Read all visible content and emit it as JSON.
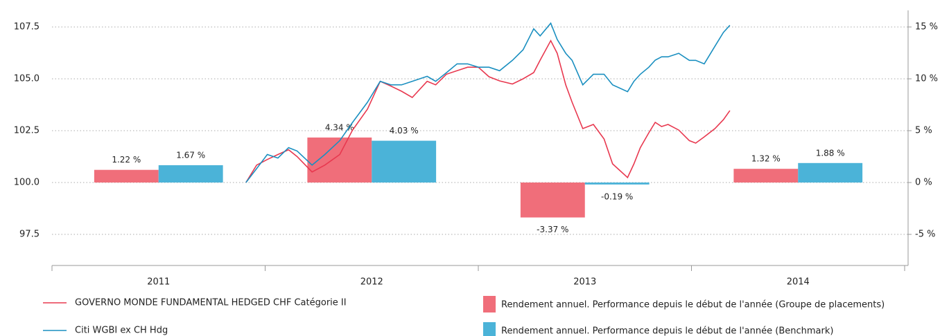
{
  "chart_data": {
    "type": "combo",
    "categories": [
      "2011",
      "2012",
      "2013",
      "2014"
    ],
    "xlim": [
      2011,
      2015
    ],
    "x": [
      2011.91,
      2011.96,
      2012.01,
      2012.06,
      2012.11,
      2012.15,
      2012.22,
      2012.28,
      2012.35,
      2012.41,
      2012.48,
      2012.54,
      2012.59,
      2012.64,
      2012.69,
      2012.76,
      2012.8,
      2012.85,
      2012.9,
      2012.95,
      2013.0,
      2013.05,
      2013.1,
      2013.16,
      2013.21,
      2013.26,
      2013.29,
      2013.34,
      2013.37,
      2013.41,
      2013.44,
      2013.49,
      2013.54,
      2013.59,
      2013.63,
      2013.7,
      2013.73,
      2013.76,
      2013.8,
      2013.83,
      2013.86,
      2013.89,
      2013.94,
      2013.99,
      2014.02,
      2014.06,
      2014.11,
      2014.15,
      2014.18
    ],
    "ylim": [
      96,
      108.3
    ],
    "yticks": [
      97.5,
      {
        "value": 100,
        "label": "100.0"
      },
      102.5,
      {
        "value": 105,
        "label": "105.0"
      },
      107.5
    ],
    "y2lim": [
      -8,
      16.6
    ],
    "y2ticks": [
      {
        "value": -5,
        "label": "-5 %"
      },
      {
        "value": 0,
        "label": "0 %"
      },
      {
        "value": 5,
        "label": "5 %"
      },
      {
        "value": 10,
        "label": "10 %"
      },
      {
        "value": 15,
        "label": "15 %"
      }
    ],
    "grid": true,
    "series": [
      {
        "name": "GOVERNO MONDE FUNDAMENTAL HEDGED CHF  Catégorie II",
        "type": "line",
        "color": "#e8384f",
        "values": [
          100.0,
          100.84,
          101.11,
          101.35,
          101.58,
          101.25,
          100.51,
          100.84,
          101.35,
          102.53,
          103.54,
          104.88,
          104.65,
          104.4,
          104.1,
          104.88,
          104.71,
          105.22,
          105.39,
          105.56,
          105.56,
          105.1,
          104.9,
          104.75,
          105.0,
          105.3,
          105.9,
          106.84,
          106.23,
          104.71,
          103.87,
          102.6,
          102.8,
          102.1,
          100.9,
          100.24,
          100.9,
          101.68,
          102.4,
          102.9,
          102.7,
          102.8,
          102.53,
          102.02,
          101.9,
          102.2,
          102.6,
          103.03,
          103.47
        ]
      },
      {
        "name": "Citi WGBI ex CH Hdg",
        "type": "line",
        "color": "#1a8fc0",
        "values": [
          100.0,
          100.67,
          101.35,
          101.18,
          101.68,
          101.52,
          100.84,
          101.35,
          102.02,
          102.9,
          103.87,
          104.88,
          104.71,
          104.71,
          104.88,
          105.12,
          104.88,
          105.29,
          105.72,
          105.72,
          105.56,
          105.56,
          105.39,
          105.89,
          106.4,
          107.41,
          107.07,
          107.68,
          106.9,
          106.23,
          105.89,
          104.71,
          105.22,
          105.22,
          104.71,
          104.38,
          104.88,
          105.22,
          105.56,
          105.9,
          106.06,
          106.06,
          106.23,
          105.89,
          105.89,
          105.72,
          106.57,
          107.24,
          107.58
        ]
      },
      {
        "name": "Rendement annuel. Performance depuis le début de l'année (Groupe de placements)",
        "type": "bar",
        "axis": "y2",
        "color": "#f06e7a",
        "values": [
          1.22,
          4.34,
          -3.37,
          1.32
        ],
        "value_labels": [
          "1.22 %",
          "4.34 %",
          "-3.37 %",
          "1.32 %"
        ]
      },
      {
        "name": "Rendement annuel. Performance depuis le début de l'année (Benchmark)",
        "type": "bar",
        "axis": "y2",
        "color": "#4bb3d8",
        "values": [
          1.67,
          4.03,
          -0.19,
          1.88
        ],
        "value_labels": [
          "1.67 %",
          "4.03 %",
          "-0.19 %",
          "1.88 %"
        ]
      }
    ]
  }
}
